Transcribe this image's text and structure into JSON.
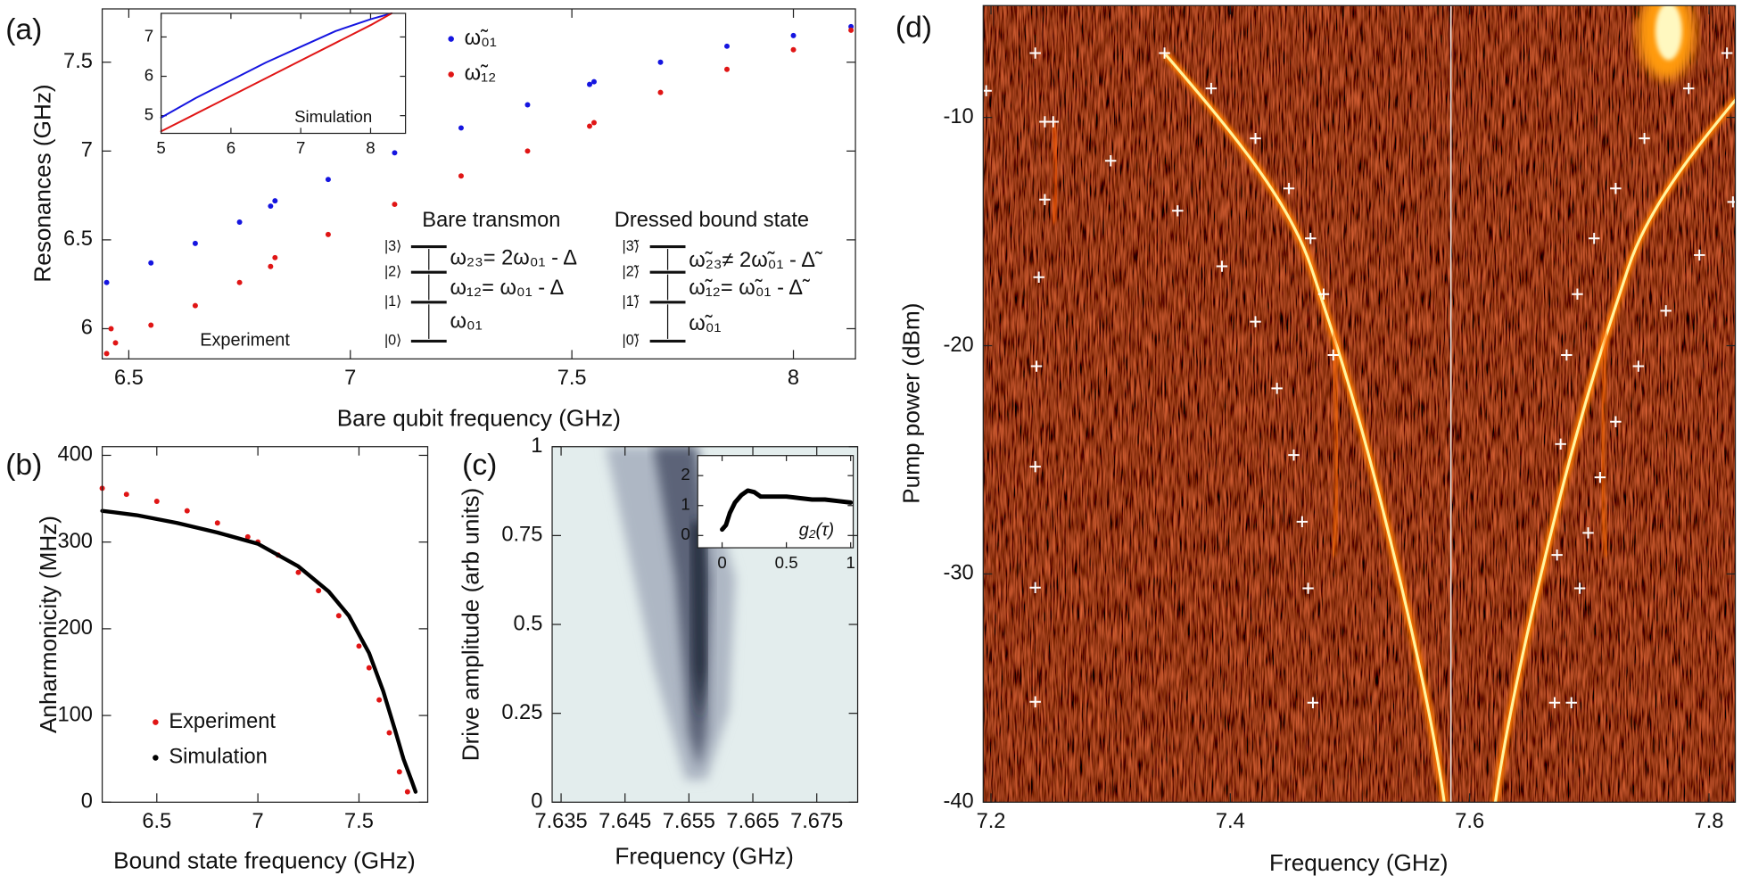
{
  "chart_data": [
    {
      "type": "scatter",
      "panel_label": "(a)",
      "xlabel": "Bare qubit frequency (GHz)",
      "ylabel": "Resonances (GHz)",
      "xlim": [
        6.44,
        8.14
      ],
      "ylim": [
        5.83,
        7.8
      ],
      "xticks": [
        6.5,
        7,
        7.5,
        8
      ],
      "yticks": [
        6,
        6.5,
        7,
        7.5
      ],
      "legend": "upper center",
      "series": [
        {
          "name": "ω̃₀₁",
          "color": "#1515e0",
          "x": [
            6.45,
            6.55,
            6.65,
            6.75,
            6.82,
            6.83,
            6.95,
            7.1,
            7.25,
            7.4,
            7.54,
            7.55,
            7.7,
            7.85,
            8.0,
            8.13
          ],
          "values": [
            6.26,
            6.37,
            6.48,
            6.6,
            6.69,
            6.72,
            6.84,
            6.99,
            7.13,
            7.26,
            7.375,
            7.39,
            7.5,
            7.59,
            7.65,
            7.7
          ]
        },
        {
          "name": "ω̃₁₂",
          "color": "#e01515",
          "x": [
            6.45,
            6.46,
            6.47,
            6.55,
            6.65,
            6.75,
            6.82,
            6.83,
            6.95,
            7.1,
            7.25,
            7.4,
            7.54,
            7.55,
            7.7,
            7.85,
            8.0,
            8.13
          ],
          "values": [
            5.86,
            6.0,
            5.92,
            6.02,
            6.13,
            6.26,
            6.35,
            6.4,
            6.53,
            6.7,
            6.86,
            7.0,
            7.14,
            7.16,
            7.33,
            7.46,
            7.57,
            7.68
          ]
        }
      ],
      "annotations": [
        "Experiment",
        "Bare transmon",
        "Dressed bound state",
        "|3⟩",
        "|2⟩",
        "|1⟩",
        "|0⟩",
        "ω₂₃= 2ω₀₁ -  Δ",
        "ω₁₂= ω₀₁ -  Δ",
        "ω₀₁",
        "|3̃⟩",
        "|2̃⟩",
        "|1̃⟩",
        "|0̃⟩",
        "ω̃₂₃≠ 2ω̃₀₁ -  Δ̃",
        "ω̃₁₂= ω̃₀₁ -  Δ̃",
        "ω̃₀₁"
      ],
      "inset": {
        "type": "line",
        "xlim": [
          5,
          8.5
        ],
        "ylim": [
          4.55,
          7.6
        ],
        "xticks": [
          5,
          6,
          7,
          8
        ],
        "yticks": [
          5,
          6,
          7
        ],
        "annotations": [
          "Simulation"
        ],
        "series": [
          {
            "color": "#1515e0",
            "x": [
              5,
              5.5,
              6,
              6.5,
              7,
              7.5,
              8,
              8.3
            ],
            "values": [
              4.95,
              5.45,
              5.9,
              6.35,
              6.75,
              7.15,
              7.45,
              7.6
            ]
          },
          {
            "color": "#e01515",
            "x": [
              5,
              5.5,
              6,
              6.5,
              7,
              7.5,
              8,
              8.3
            ],
            "values": [
              4.6,
              5.05,
              5.5,
              5.95,
              6.4,
              6.85,
              7.3,
              7.6
            ]
          }
        ]
      }
    },
    {
      "type": "scatter",
      "panel_label": "(b)",
      "xlabel": "Bound state frequency (GHz)",
      "ylabel": "Anharmonicity (MHz)",
      "xlim": [
        6.23,
        7.84
      ],
      "ylim": [
        0,
        410
      ],
      "xticks": [
        6.5,
        7,
        7.5
      ],
      "yticks": [
        0,
        100,
        200,
        300,
        400
      ],
      "legend": "lower left",
      "series": [
        {
          "name": "Experiment",
          "color": "#e01515",
          "mode": "markers",
          "x": [
            6.23,
            6.35,
            6.5,
            6.65,
            6.8,
            6.95,
            7.0,
            7.1,
            7.2,
            7.3,
            7.4,
            7.5,
            7.55,
            7.6,
            7.65,
            7.7,
            7.74
          ],
          "values": [
            362,
            355,
            347,
            336,
            322,
            306,
            300,
            285,
            265,
            244,
            215,
            180,
            155,
            118,
            80,
            35,
            12
          ]
        },
        {
          "name": "Simulation",
          "color": "#000000",
          "mode": "line",
          "x": [
            6.23,
            6.4,
            6.6,
            6.8,
            7.0,
            7.2,
            7.35,
            7.45,
            7.55,
            7.62,
            7.68,
            7.72,
            7.76,
            7.78
          ],
          "values": [
            336,
            331,
            322,
            311,
            298,
            272,
            243,
            215,
            172,
            128,
            82,
            50,
            25,
            12
          ]
        }
      ]
    },
    {
      "type": "heatmap",
      "panel_label": "(c)",
      "xlabel": "Frequency (GHz)",
      "ylabel": "Drive amplitude (arb units)",
      "xlim": [
        7.6336,
        7.6814
      ],
      "ylim": [
        0,
        1
      ],
      "xticks": [
        7.635,
        7.645,
        7.655,
        7.665,
        7.675
      ],
      "yticks": [
        0,
        0.25,
        0.5,
        0.75,
        1
      ],
      "inset": {
        "type": "line",
        "xlim": [
          -0.19,
          1.02
        ],
        "ylim": [
          -0.41,
          2.67
        ],
        "xticks": [
          0,
          0.5,
          1
        ],
        "yticks": [
          0,
          1,
          2
        ],
        "annotations": [
          "g₂(τ)"
        ],
        "series": [
          {
            "color": "#000000",
            "x": [
              0,
              0.03,
              0.06,
              0.1,
              0.15,
              0.2,
              0.25,
              0.3,
              0.4,
              0.5,
              0.6,
              0.7,
              0.8,
              0.9,
              1
            ],
            "values": [
              0.2,
              0.35,
              0.75,
              1.1,
              1.35,
              1.5,
              1.45,
              1.3,
              1.3,
              1.3,
              1.25,
              1.2,
              1.2,
              1.15,
              1.1
            ]
          }
        ]
      }
    },
    {
      "type": "scatter",
      "panel_label": "(d)",
      "xlabel": "Frequency (GHz)",
      "ylabel": "Pump power (dBm)",
      "marker": "+",
      "xlim": [
        7.1935,
        7.822
      ],
      "ylim": [
        -40,
        -5.1
      ],
      "xticks": [
        7.2,
        7.4,
        7.6,
        7.8
      ],
      "yticks": [
        -40,
        -30,
        -20,
        -10
      ],
      "series": [
        {
          "color": "#ffffff",
          "x": [
            7.237,
            7.252,
            7.245,
            7.24,
            7.238,
            7.237,
            7.237,
            7.237
          ],
          "values": [
            -7.18,
            -10.19,
            -13.6,
            -17.0,
            -20.9,
            -25.3,
            -30.6,
            -35.6
          ]
        },
        {
          "color": "#ffffff",
          "x": [
            7.196,
            7.245,
            7.3,
            7.356,
            7.393,
            7.421,
            7.439,
            7.453,
            7.46,
            7.465,
            7.469
          ],
          "values": [
            -8.83,
            -10.19,
            -11.9,
            -14.09,
            -16.52,
            -18.95,
            -21.87,
            -24.79,
            -27.71,
            -30.63,
            -35.64
          ]
        },
        {
          "color": "#ffffff",
          "x": [
            7.345,
            7.384,
            7.421,
            7.449,
            7.467,
            7.478,
            7.486
          ],
          "values": [
            -7.18,
            -8.73,
            -10.92,
            -13.11,
            -15.3,
            -17.74,
            -20.41
          ]
        },
        {
          "color": "#ffffff",
          "x": [
            7.815,
            7.783,
            7.746,
            7.722,
            7.704,
            7.69,
            7.681,
            7.676,
            7.673,
            7.671
          ],
          "values": [
            -7.18,
            -8.73,
            -10.92,
            -13.11,
            -15.3,
            -17.74,
            -20.41,
            -24.31,
            -29.17,
            -35.64
          ]
        },
        {
          "color": "#ffffff",
          "x": [
            7.82,
            7.792,
            7.764,
            7.741,
            7.722,
            7.709,
            7.699,
            7.692,
            7.685
          ],
          "values": [
            -13.7,
            -16.03,
            -18.47,
            -20.9,
            -23.33,
            -25.77,
            -28.2,
            -30.63,
            -35.64
          ]
        }
      ]
    }
  ]
}
